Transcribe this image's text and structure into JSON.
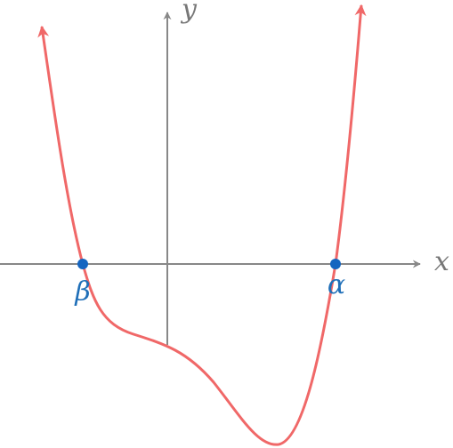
{
  "axes": {
    "x_label": "x",
    "y_label": "y"
  },
  "points": [
    {
      "label": "β"
    },
    {
      "label": "α"
    }
  ]
}
